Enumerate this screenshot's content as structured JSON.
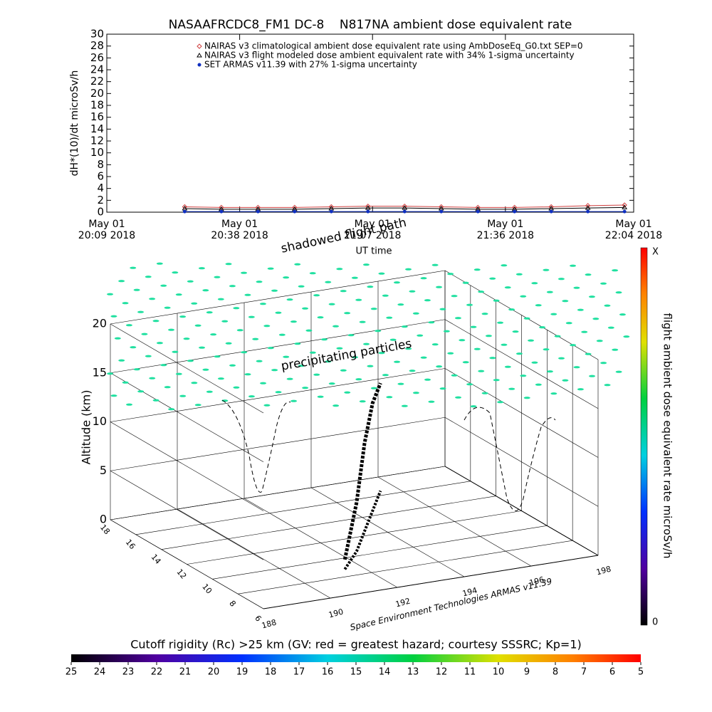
{
  "chart_data": [
    {
      "type": "line",
      "title": "NASAAFRCDC8_FM1 DC-8    N817NA ambient dose equivalent rate",
      "ylabel": "dH*(10)/dt microSv/h",
      "xlim": [
        0,
        115
      ],
      "xticks": [
        {
          "value": 0,
          "label": "May 01\n20:09 2018"
        },
        {
          "value": 29,
          "label": "May 01\n20:38 2018"
        },
        {
          "value": 58,
          "label": "May 01\n21:07 2018"
        },
        {
          "value": 87,
          "label": "May 01\n21:36 2018"
        },
        {
          "value": 115,
          "label": "May 01\n22:04 2018"
        }
      ],
      "ylim": [
        0,
        30
      ],
      "yticks": [
        0,
        2,
        4,
        6,
        8,
        10,
        12,
        14,
        16,
        18,
        20,
        22,
        24,
        26,
        28,
        30
      ],
      "x": [
        17,
        25,
        33,
        41,
        49,
        57,
        65,
        73,
        81,
        89,
        97,
        105,
        113
      ],
      "series": [
        {
          "name": "NAIRAS v3 climatological ambient dose equivalent rate using AmbDoseEq_G0.txt SEP=0",
          "color": "#d04040",
          "marker": "diamond",
          "values": [
            0.9,
            0.8,
            0.8,
            0.8,
            0.9,
            1.0,
            1.0,
            0.9,
            0.8,
            0.8,
            0.9,
            1.1,
            1.2
          ]
        },
        {
          "name": "NAIRAS v3 flight modeled dose ambient equivalent rate with 34% 1-sigma uncertainty",
          "color": "#000000",
          "marker": "triangle",
          "values": [
            0.6,
            0.5,
            0.5,
            0.5,
            0.6,
            0.7,
            0.7,
            0.6,
            0.5,
            0.5,
            0.6,
            0.7,
            0.8
          ]
        },
        {
          "name": "SET ARMAS v11.39 with 27% 1-sigma uncertainty",
          "color": "#1030c0",
          "marker": "circle",
          "values": [
            0.1,
            0.1,
            0.1,
            0.1,
            0.1,
            0.1,
            0.1,
            0.1,
            0.1,
            0.1,
            0.1,
            0.1,
            0.1
          ]
        }
      ]
    },
    {
      "type": "3d",
      "zlabel": "Altitude (km)",
      "zlim": [
        0,
        20
      ],
      "zticks": [
        0,
        5,
        10,
        15,
        20
      ],
      "latlim": [
        18,
        6
      ],
      "latticks": [
        18,
        16,
        14,
        12,
        10,
        8,
        6
      ],
      "lonlim": [
        188,
        198
      ],
      "lonticks": [
        188,
        190,
        192,
        194,
        196,
        198
      ],
      "annotations": [
        "shadowed flight path",
        "UT time",
        "precipitating particles",
        "Space Environment Technologies ARMAS v11.39"
      ],
      "flight_path": {
        "lat": [
          8.8,
          10.5,
          12.5,
          14.5,
          16.5
        ],
        "lon": [
          191.5,
          192.5,
          193.5,
          194.5,
          195.5
        ],
        "alt": [
          1,
          5,
          9,
          11,
          11
        ]
      },
      "colorbar_label": "flight ambient dose equivalent rate microSv/h",
      "colorbar_ticks": [
        "X",
        "0"
      ],
      "rigidity_title": "Cutoff rigidity (Rc) >25 km (GV: red = greatest hazard; courtesy SSSRC; Kp=1)",
      "rigidity_lim": [
        25,
        5
      ],
      "rigidity_ticks": [
        25,
        24,
        23,
        22,
        21,
        20,
        19,
        18,
        17,
        16,
        15,
        14,
        13,
        12,
        11,
        10,
        9,
        8,
        7,
        6,
        5
      ]
    }
  ]
}
